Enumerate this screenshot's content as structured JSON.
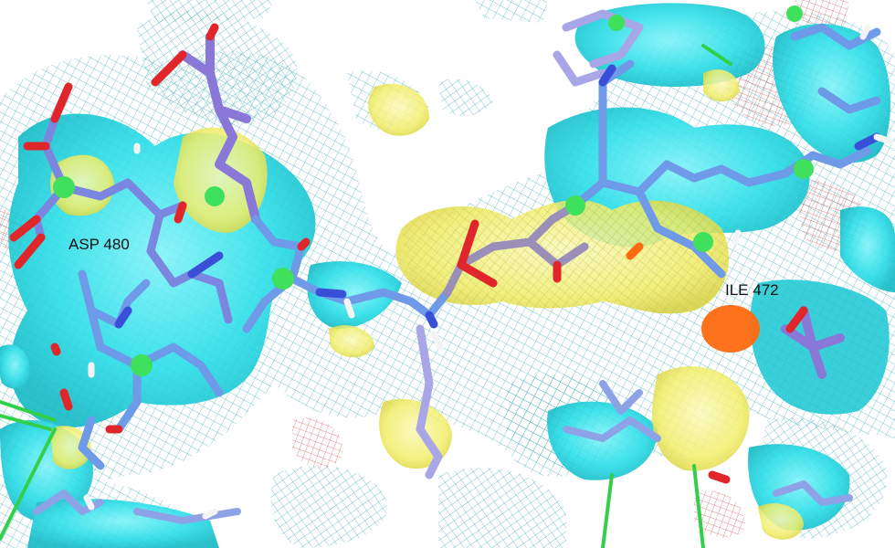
{
  "viewer": {
    "labels": {
      "asp": "ASP 480",
      "ile": "ILE 472"
    },
    "colors": {
      "background": "#ffffff",
      "density_surface": "#25dde8",
      "density_surface_dark": "#0fb8c4",
      "density_mesh": "#3aa7b5",
      "positive_density": "#f2ee6a",
      "negative_mesh": "#d64a4a",
      "carbon_slate": "#7a86e0",
      "carbon_purple": "#8a78d8",
      "carbon_lavender": "#a8a6e6",
      "nitrogen_blue": "#3a4fd8",
      "oxygen_red": "#e0262a",
      "hydrogen_white": "#f4f4f4",
      "chloride_green": "#3fe05c",
      "bond_green": "#32d04a",
      "hotspot_orange": "#ff6a10"
    }
  }
}
